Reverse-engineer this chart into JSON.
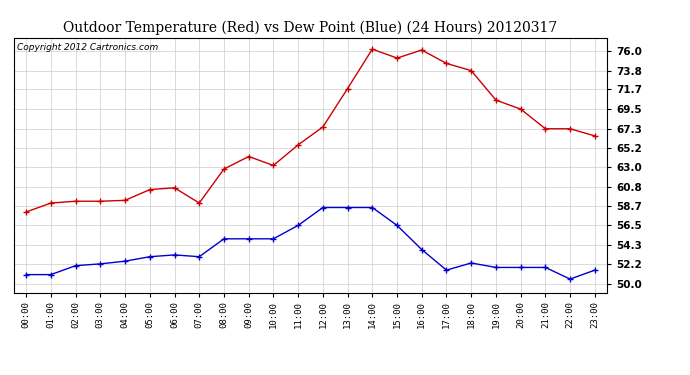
{
  "title": "Outdoor Temperature (Red) vs Dew Point (Blue) (24 Hours) 20120317",
  "copyright": "Copyright 2012 Cartronics.com",
  "hours": [
    "00:00",
    "01:00",
    "02:00",
    "03:00",
    "04:00",
    "05:00",
    "06:00",
    "07:00",
    "08:00",
    "09:00",
    "10:00",
    "11:00",
    "12:00",
    "13:00",
    "14:00",
    "15:00",
    "16:00",
    "17:00",
    "18:00",
    "19:00",
    "20:00",
    "21:00",
    "22:00",
    "23:00"
  ],
  "temp": [
    58.0,
    59.0,
    59.2,
    59.2,
    59.3,
    60.5,
    60.7,
    59.0,
    62.8,
    64.2,
    63.2,
    65.5,
    67.5,
    71.8,
    76.2,
    75.2,
    76.1,
    74.6,
    73.8,
    70.5,
    69.5,
    67.3,
    67.3,
    66.5
  ],
  "dew": [
    51.0,
    51.0,
    52.0,
    52.2,
    52.5,
    53.0,
    53.2,
    53.0,
    55.0,
    55.0,
    55.0,
    56.5,
    58.5,
    58.5,
    58.5,
    56.5,
    53.8,
    51.5,
    52.3,
    51.8,
    51.8,
    51.8,
    50.5,
    51.5
  ],
  "temp_color": "#cc0000",
  "dew_color": "#0000cc",
  "bg_color": "#ffffff",
  "grid_color": "#cccccc",
  "title_fontsize": 10,
  "copyright_fontsize": 6.5,
  "ylim_min": 49.0,
  "ylim_max": 77.5,
  "yticks": [
    50.0,
    52.2,
    54.3,
    56.5,
    58.7,
    60.8,
    63.0,
    65.2,
    67.3,
    69.5,
    71.7,
    73.8,
    76.0
  ]
}
